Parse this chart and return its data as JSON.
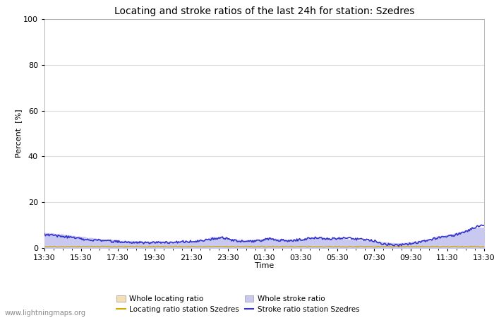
{
  "title": "Locating and stroke ratios of the last 24h for station: Szedres",
  "xlabel": "Time",
  "ylabel": "Percent  [%]",
  "xlim": [
    0,
    48
  ],
  "ylim": [
    0,
    100
  ],
  "yticks": [
    0,
    20,
    40,
    60,
    80,
    100
  ],
  "xtick_labels": [
    "13:30",
    "15:30",
    "17:30",
    "19:30",
    "21:30",
    "23:30",
    "01:30",
    "03:30",
    "05:30",
    "07:30",
    "09:30",
    "11:30",
    "13:30"
  ],
  "background_color": "#ffffff",
  "plot_bg_color": "#ffffff",
  "grid_color": "#dddddd",
  "watermark": "www.lightningmaps.org",
  "whole_locating_fill_color": "#f5deb3",
  "whole_stroke_fill_color": "#c8c8f0",
  "locating_line_color": "#ccaa00",
  "stroke_line_color": "#3333cc",
  "title_fontsize": 10,
  "axis_fontsize": 8,
  "tick_fontsize": 8
}
